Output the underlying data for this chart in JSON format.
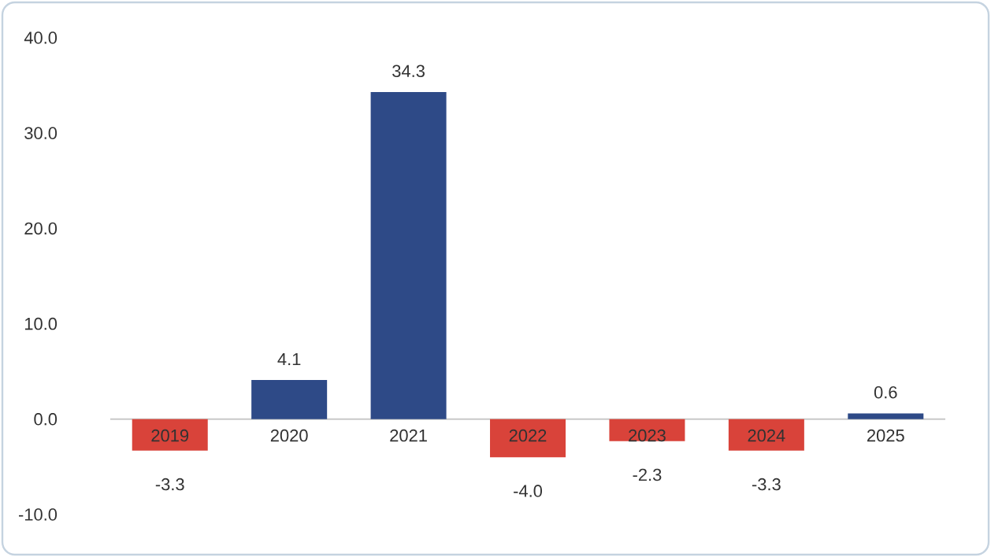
{
  "chart_data": {
    "type": "bar",
    "categories": [
      "2019",
      "2020",
      "2021",
      "2022",
      "2023",
      "2024",
      "2025"
    ],
    "values": [
      -3.3,
      4.1,
      34.3,
      -4.0,
      -2.3,
      -3.3,
      0.6
    ],
    "colors": [
      "#d9433a",
      "#2e4a87",
      "#2e4a87",
      "#d9433a",
      "#d9433a",
      "#d9433a",
      "#2e4a87"
    ],
    "value_labels": [
      "-3.3",
      "4.1",
      "34.3",
      "-4.0",
      "-2.3",
      "-3.3",
      "0.6"
    ],
    "ylim": [
      -10,
      40
    ],
    "yticks": [
      {
        "value": -10,
        "label": "-10.0"
      },
      {
        "value": 0,
        "label": "0.0"
      },
      {
        "value": 10,
        "label": "10.0"
      },
      {
        "value": 20,
        "label": "20.0"
      },
      {
        "value": 30,
        "label": "30.0"
      },
      {
        "value": 40,
        "label": "40.0"
      }
    ],
    "grid": false
  }
}
